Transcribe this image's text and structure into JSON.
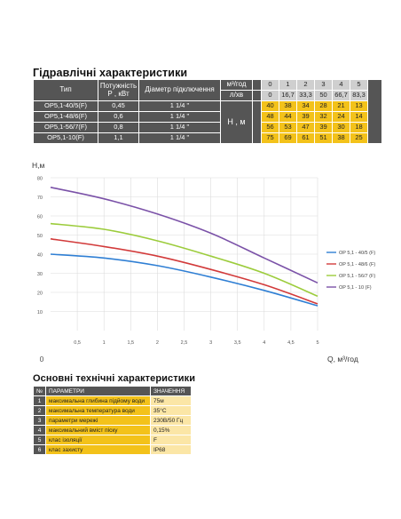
{
  "hydraulic": {
    "title": "Гідравлічні характеристики",
    "headers": {
      "type": "Тип",
      "power": "Потужність Р , кВт",
      "diameter": "Діаметр підключення",
      "flow_m3": "м³/год",
      "flow_l": "л/хв",
      "head": "Н , м"
    },
    "flow_m3_values": [
      "0",
      "1",
      "2",
      "3",
      "4",
      "5"
    ],
    "flow_l_values": [
      "0",
      "16,7",
      "33,3",
      "50",
      "66,7",
      "83,3"
    ],
    "rows": [
      {
        "type": "OP5,1-40/5(F)",
        "power": "0,45",
        "diameter": "1 1/4 \"",
        "heads": [
          "40",
          "38",
          "34",
          "28",
          "21",
          "13"
        ]
      },
      {
        "type": "OP5,1-48/6(F)",
        "power": "0,6",
        "diameter": "1 1/4 \"",
        "heads": [
          "48",
          "44",
          "39",
          "32",
          "24",
          "14"
        ]
      },
      {
        "type": "OP5,1-56/7(F)",
        "power": "0,8",
        "diameter": "1 1/4 \"",
        "heads": [
          "56",
          "53",
          "47",
          "39",
          "30",
          "18"
        ]
      },
      {
        "type": "OP5,1-10(F)",
        "power": "1,1",
        "diameter": "1 1/4 \"",
        "heads": [
          "75",
          "69",
          "61",
          "51",
          "38",
          "25"
        ]
      }
    ]
  },
  "chart_data": {
    "type": "line",
    "title": "",
    "ylabel": "Н,м",
    "xlabel": "Q, м³/год",
    "x_ticks": [
      "0",
      "0,5",
      "1",
      "1,5",
      "2",
      "2,5",
      "3",
      "3,5",
      "4",
      "4,5",
      "5"
    ],
    "y_ticks": [
      "0",
      "10",
      "20",
      "30",
      "40",
      "50",
      "60",
      "70",
      "80"
    ],
    "xlim": [
      0,
      5
    ],
    "ylim": [
      0,
      80
    ],
    "grid": true,
    "legend_position": "right",
    "x": [
      0,
      1,
      2,
      3,
      4,
      5
    ],
    "series": [
      {
        "name": "OP 5,1 - 40/5 (F)",
        "color": "#2f7fd4",
        "values": [
          40,
          38,
          34,
          28,
          21,
          13
        ]
      },
      {
        "name": "OP 5,1 - 48/6 (F)",
        "color": "#d23a3a",
        "values": [
          48,
          44,
          39,
          32,
          24,
          14
        ]
      },
      {
        "name": "OP 5,1 - 56/7 (F)",
        "color": "#9ccc3c",
        "values": [
          56,
          53,
          47,
          39,
          30,
          18
        ]
      },
      {
        "name": "OP 5,1 - 10 (F)",
        "color": "#7b52a8",
        "values": [
          75,
          69,
          61,
          51,
          38,
          25
        ]
      }
    ]
  },
  "specs": {
    "title": "Основні технічні характеристики",
    "header_num": "№",
    "header_param": "ПАРАМЕТРИ",
    "header_value": "ЗНАЧЕННЯ",
    "rows": [
      {
        "num": "1",
        "param": "максимальна глибина підйому води",
        "value": "75м"
      },
      {
        "num": "2",
        "param": "максимальна температура води",
        "value": "35°C"
      },
      {
        "num": "3",
        "param": "параметри мережі",
        "value": "230В/50 Гц"
      },
      {
        "num": "4",
        "param": "максимальний вміст піску",
        "value": "0,15%"
      },
      {
        "num": "5",
        "param": "клас ізоляції",
        "value": "F"
      },
      {
        "num": "6",
        "param": "клас захисту",
        "value": "IP68"
      }
    ]
  }
}
